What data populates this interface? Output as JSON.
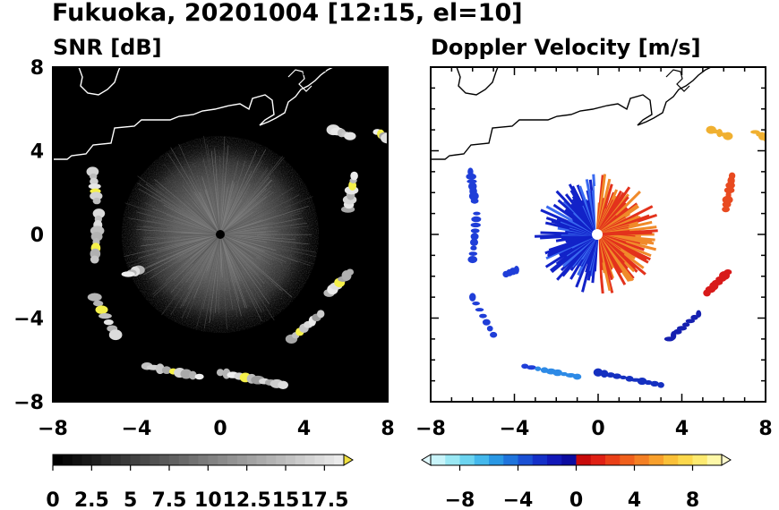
{
  "title": "Fukuoka, 20201004 [12:15, el=10]",
  "chart_data": [
    {
      "type": "heatmap",
      "title": "SNR [dB]",
      "xlim": [
        -8,
        8
      ],
      "ylim": [
        -8,
        8
      ],
      "xticks": [
        "−8",
        "−4",
        "0",
        "4",
        "8"
      ],
      "yticks": [
        "8",
        "4",
        "0",
        "−4",
        "−8"
      ],
      "colorbar": {
        "range": [
          0,
          18.75
        ],
        "extend": "max",
        "tick_labels": [
          "0",
          "2.5",
          "5",
          "7.5",
          "10",
          "12.5",
          "15",
          "17.5"
        ],
        "tick_values": [
          0,
          2.5,
          5,
          7.5,
          10,
          12.5,
          15,
          17.5
        ]
      },
      "radar_center": [
        0,
        0
      ],
      "colors": {
        "background": "#000000",
        "high": "#f5f04a",
        "coastline": "#ffffff"
      }
    },
    {
      "type": "heatmap",
      "title": "Doppler Velocity [m/s]",
      "xlim": [
        -8,
        8
      ],
      "ylim": [
        -8,
        8
      ],
      "xticks": [
        "−8",
        "−4",
        "0",
        "4",
        "8"
      ],
      "yticks": [],
      "colorbar": {
        "range": [
          -10,
          10
        ],
        "extend": "both",
        "tick_labels": [
          "−8",
          "−4",
          "0",
          "4",
          "8"
        ],
        "tick_values": [
          -8,
          -4,
          0,
          4,
          8
        ]
      },
      "radar_center": [
        0,
        0
      ],
      "colors": {
        "negative": "#0a1ed2",
        "positive": "#e8201a",
        "background": "#ffffff",
        "coastline": "#000000"
      }
    }
  ]
}
